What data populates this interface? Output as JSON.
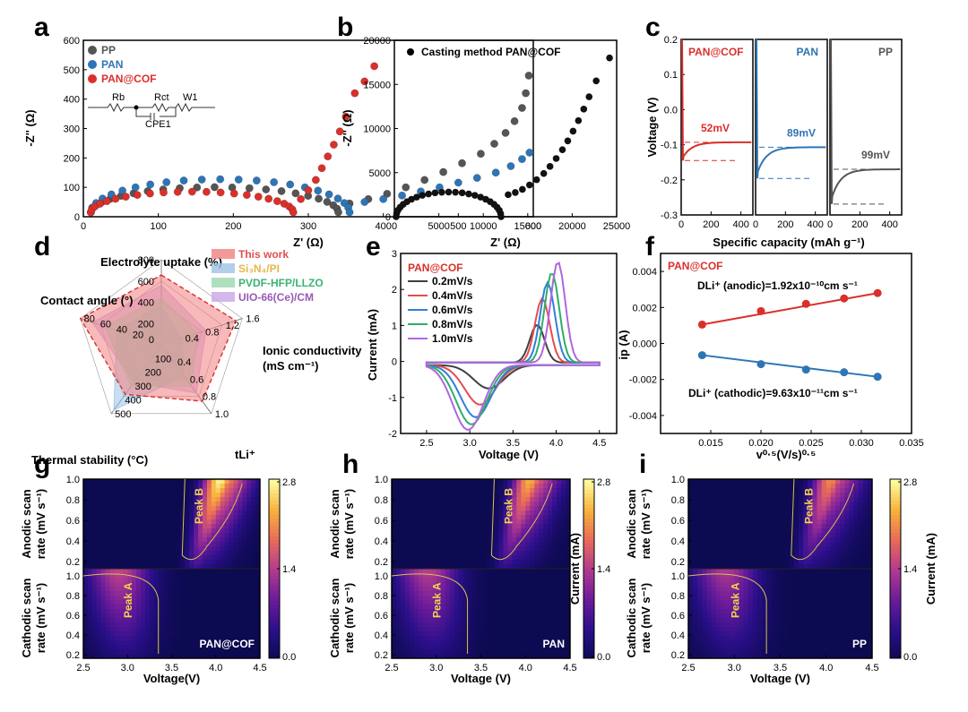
{
  "panels": {
    "a": {
      "label": "a",
      "xlabel": "Z' (Ω)",
      "ylabel": "-Z'' (Ω)",
      "xlim": [
        0,
        600
      ],
      "ylim": [
        0,
        600
      ],
      "xticks": [
        0,
        100,
        200,
        300,
        400,
        500,
        600
      ],
      "yticks": [
        0,
        100,
        200,
        300,
        400,
        500,
        600
      ],
      "circuit_labels": [
        "Rb",
        "Rct",
        "W1",
        "CPE1"
      ],
      "series": [
        {
          "name": "PP",
          "color": "#555555",
          "semicircle": {
            "r0": 10,
            "d": 330,
            "h": 95
          },
          "tail": [
            [
              355,
              45
            ],
            [
              380,
              60
            ],
            [
              405,
              78
            ],
            [
              430,
              100
            ],
            [
              455,
              125
            ],
            [
              480,
              152
            ],
            [
              505,
              182
            ],
            [
              530,
              214
            ],
            [
              548,
              248
            ],
            [
              563,
              285
            ],
            [
              575,
              325
            ],
            [
              585,
              370
            ],
            [
              590,
              420
            ],
            [
              594,
              480
            ]
          ]
        },
        {
          "name": "PAN",
          "color": "#2e75b6",
          "semicircle": {
            "r0": 10,
            "d": 345,
            "h": 125
          },
          "tail": [
            [
              375,
              50
            ],
            [
              400,
              60
            ],
            [
              425,
              72
            ],
            [
              450,
              86
            ],
            [
              475,
              100
            ],
            [
              500,
              116
            ],
            [
              525,
              132
            ],
            [
              550,
              150
            ],
            [
              570,
              172
            ],
            [
              585,
              196
            ],
            [
              595,
              218
            ]
          ]
        },
        {
          "name": "PAN@COF",
          "color": "#d9302c",
          "semicircle": {
            "r0": 10,
            "d": 270,
            "h": 78
          },
          "tail": [
            [
              290,
              60
            ],
            [
              300,
              90
            ],
            [
              310,
              125
            ],
            [
              318,
              165
            ],
            [
              326,
              205
            ],
            [
              334,
              245
            ],
            [
              342,
              290
            ],
            [
              350,
              340
            ],
            [
              362,
              420
            ],
            [
              375,
              460
            ],
            [
              388,
              512
            ]
          ]
        }
      ]
    },
    "b": {
      "label": "b",
      "legend": "Casting method PAN@COF",
      "xlabel": "Z' (Ω)",
      "ylabel": "-Z'' (Ω)",
      "xlim": [
        0,
        25000
      ],
      "ylim": [
        0,
        20000
      ],
      "xticks": [
        0,
        5000,
        10000,
        15000,
        20000,
        25000
      ],
      "yticks": [
        0,
        5000,
        10000,
        15000,
        20000
      ],
      "semicircle": {
        "r0": 200,
        "d": 11800,
        "h": 2800
      },
      "tail": [
        [
          12800,
          2500
        ],
        [
          13600,
          2750
        ],
        [
          14400,
          3100
        ],
        [
          15200,
          3600
        ],
        [
          16000,
          4200
        ],
        [
          16800,
          4900
        ],
        [
          17500,
          5700
        ],
        [
          18200,
          6600
        ],
        [
          18900,
          7600
        ],
        [
          19500,
          8600
        ],
        [
          20100,
          9700
        ],
        [
          20700,
          10900
        ],
        [
          21300,
          12200
        ],
        [
          21900,
          13600
        ],
        [
          22700,
          15400
        ],
        [
          24200,
          18000
        ]
      ]
    },
    "c": {
      "label": "c",
      "xlabel": "Specific capacity (mAh g⁻¹)",
      "ylabel": "Voltage (V)",
      "ylim": [
        -0.3,
        0.2
      ],
      "yticks": [
        0.2,
        0.1,
        0.0,
        -0.1,
        -0.2,
        -0.3
      ],
      "xticks": [
        0,
        200,
        400
      ],
      "subpanels": [
        {
          "name": "PAN@COF",
          "color": "#d9302c",
          "overpotential": "52mV",
          "plateau": -0.093,
          "dip": -0.145
        },
        {
          "name": "PAN",
          "color": "#2e75b6",
          "overpotential": "89mV",
          "plateau": -0.107,
          "dip": -0.196
        },
        {
          "name": "PP",
          "color": "#555555",
          "overpotential": "99mV",
          "plateau": -0.17,
          "dip": -0.269
        }
      ]
    },
    "d": {
      "label": "d",
      "axes": [
        "Electrolyte uptake (%)",
        "Ionic conductivity\n(mS cm⁻¹)",
        "tLi⁺",
        "Thermal stability (°C)",
        "Contact angle (°)"
      ],
      "axis_ticks": {
        "uptake": [
          "200",
          "400",
          "600",
          "800"
        ],
        "conductivity": [
          "0.4",
          "0.8",
          "1.2",
          "1.6"
        ],
        "tli": [
          "0.4",
          "0.6",
          "0.8",
          "1.0"
        ],
        "thermal": [
          "100",
          "200",
          "300",
          "400",
          "500"
        ],
        "contact": [
          "0",
          "20",
          "40",
          "60",
          "80"
        ]
      },
      "legend": [
        {
          "name": "This work",
          "color": "#f08080",
          "text_color": "#e05050"
        },
        {
          "name": "Si₃N₄/PI",
          "color": "#9dc3e6",
          "text_color": "#e3b84a"
        },
        {
          "name": "PVDF-HFP/LLZO",
          "color": "#9ad8b0",
          "text_color": "#3cb371"
        },
        {
          "name": "UIO-66(Ce)/CM",
          "color": "#c9a6e6",
          "text_color": "#9b59b6"
        }
      ],
      "series_values": [
        {
          "name": "This work",
          "values": [
            0.82,
            0.92,
            0.82,
            0.72,
            1.0
          ]
        },
        {
          "name": "Si₃N₄/PI",
          "values": [
            0.45,
            0.25,
            0.45,
            0.95,
            0.55
          ]
        },
        {
          "name": "PVDF-HFP/LLZO",
          "values": [
            0.55,
            0.45,
            0.6,
            0.6,
            0.7
          ]
        },
        {
          "name": "UIO-66(Ce)/CM",
          "values": [
            0.7,
            0.55,
            0.7,
            0.55,
            0.85
          ]
        }
      ]
    },
    "e": {
      "label": "e",
      "title": "PAN@COF",
      "xlabel": "Voltage (V)",
      "ylabel": "Current (mA)",
      "xlim": [
        2.0,
        4.5
      ],
      "ylim": [
        -2,
        3
      ],
      "xticks": [
        2.5,
        3.0,
        3.5,
        4.0,
        4.5
      ],
      "yticks": [
        -2,
        -1,
        0,
        1,
        2,
        3
      ],
      "series": [
        {
          "name": "0.2mV/s",
          "color": "#404040",
          "anodic_peak": [
            3.78,
            1.05
          ],
          "cathodic_peak": [
            3.22,
            -0.65
          ]
        },
        {
          "name": "0.4mV/s",
          "color": "#e74c4c",
          "anodic_peak": [
            3.84,
            1.78
          ],
          "cathodic_peak": [
            3.12,
            -1.1
          ]
        },
        {
          "name": "0.6mV/s",
          "color": "#2f7fd8",
          "anodic_peak": [
            3.9,
            2.22
          ],
          "cathodic_peak": [
            3.07,
            -1.45
          ]
        },
        {
          "name": "0.8mV/s",
          "color": "#2eae6a",
          "anodic_peak": [
            3.95,
            2.5
          ],
          "cathodic_peak": [
            3.02,
            -1.65
          ]
        },
        {
          "name": "1.0mV/s",
          "color": "#b066e0",
          "anodic_peak": [
            4.02,
            2.8
          ],
          "cathodic_peak": [
            2.98,
            -1.8
          ]
        }
      ]
    },
    "f": {
      "label": "f",
      "title": "PAN@COF",
      "xlabel": "v⁰·⁵(V/s)⁰·⁵",
      "ylabel": "ip (A)",
      "xlim": [
        0.01,
        0.035
      ],
      "ylim": [
        -0.005,
        0.005
      ],
      "xticks": [
        "0.015",
        "0.020",
        "0.025",
        "0.030",
        "0.035"
      ],
      "yticks": [
        "0.004",
        "0.002",
        "0.000",
        "-0.002",
        "-0.004"
      ],
      "anodic_label": "DLi⁺ (anodic)=1.92x10⁻¹⁰cm s⁻¹",
      "cathodic_label": "DLi⁺ (cathodic)=9.63x10⁻¹¹cm s⁻¹",
      "x": [
        0.01414,
        0.02,
        0.02449,
        0.02828,
        0.03162
      ],
      "anodic": [
        0.00105,
        0.0018,
        0.0022,
        0.0025,
        0.0028
      ],
      "cathodic": [
        -0.00065,
        -0.00115,
        -0.00145,
        -0.0016,
        -0.00185
      ],
      "anodic_color": "#d9302c",
      "cathodic_color": "#2e75b6"
    },
    "heatmaps": [
      {
        "label": "g",
        "sample": "PAN@COF",
        "xlabel": "Voltage(V)",
        "cb_label": "",
        "peakA_scale": 1.0,
        "peakB_scale": 1.0
      },
      {
        "label": "h",
        "sample": "PAN",
        "xlabel": "Voltage (V)",
        "cb_label": "Current (mA)",
        "peakA_scale": 0.95,
        "peakB_scale": 0.85
      },
      {
        "label": "i",
        "sample": "PP",
        "xlabel": "Voltage (V)",
        "cb_label": "Current (mA)",
        "peakA_scale": 0.9,
        "peakB_scale": 0.75
      }
    ],
    "heatmap_common": {
      "xticks": [
        "2.5",
        "3.0",
        "3.5",
        "4.0",
        "4.5"
      ],
      "yticks_top": [
        "1.0",
        "0.8",
        "0.6",
        "0.4",
        "0.2"
      ],
      "yticks_bottom": [
        "1.0",
        "0.8",
        "0.6",
        "0.4",
        "0.2"
      ],
      "ylabel_top": [
        "Anodic scan",
        "rate (mV s⁻¹)"
      ],
      "ylabel_bottom": [
        "Cathodic scan",
        "rate (mV s⁻¹)"
      ],
      "peak_a": "Peak A",
      "peak_b": "Peak B",
      "cb_ticks": [
        "2.8",
        "1.4",
        "0.0"
      ],
      "colormap": [
        "#0c0a50",
        "#2a0f8a",
        "#6a1b9a",
        "#b03a8f",
        "#e86a5a",
        "#f7b13b",
        "#fdfd9f"
      ]
    }
  }
}
